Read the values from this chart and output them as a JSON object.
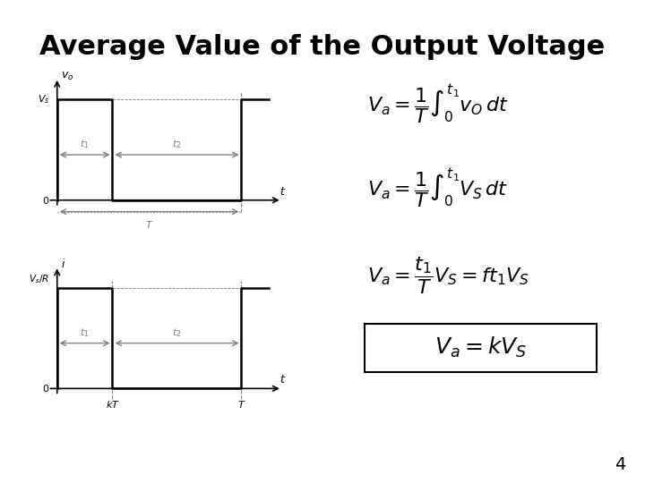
{
  "title": "Average Value of the Output Voltage",
  "title_fontsize": 22,
  "background_color": "#ffffff",
  "page_number": "4",
  "eq1": "$V_a = \\dfrac{1}{T}\\int_0^{t_1} v_O dt$",
  "eq2": "$V_a = \\dfrac{1}{T}\\int_0^{t_1} V_S dt$",
  "eq3": "$V_a = \\dfrac{t_1}{T} V_S = ft_1 V_S$",
  "eq4": "$V_a = kV_S$",
  "graph1": {
    "ylabel": "$v_o$",
    "xlabel": "$t$",
    "vs_label": "$V_s$",
    "zero_label": "$0$",
    "t1_label": "$t_1$",
    "t2_label": "$t_2$",
    "T_label": "$T$",
    "pulse_high": 0.7,
    "pulse_t1": 0.3,
    "pulse_t2": 0.7,
    "period": 1.0
  },
  "graph2": {
    "ylabel": "$i$",
    "ylabel2": "$V_s/R$",
    "xlabel": "$t$",
    "kT_label": "$kT$",
    "T_label": "$T$",
    "t1_label": "$t_1$",
    "t2_label": "$t_2$",
    "zero_label": "$0$",
    "pulse_high": 0.7,
    "pulse_t1": 0.3,
    "pulse_t2": 0.7,
    "period": 1.0
  }
}
